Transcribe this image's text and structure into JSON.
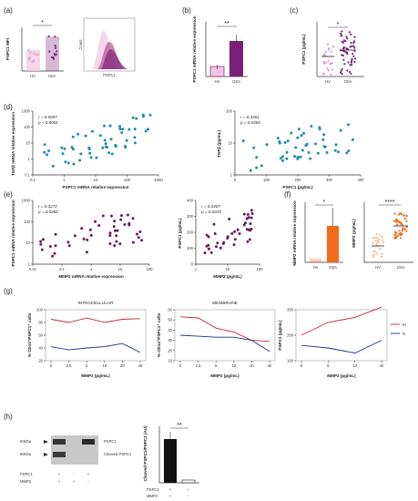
{
  "panels": {
    "a": {
      "label": "(a)",
      "ylabel": "PSPC1 MFI",
      "categories": [
        "HV",
        "OSA"
      ],
      "yticks": [
        "0",
        "10",
        "20",
        "30",
        "40"
      ],
      "sig": "*",
      "hist_ylabel": "Count",
      "hist_xlabel": "PSPC1"
    },
    "b": {
      "label": "(b)",
      "ylabel": "PSPC1 mRNA relative expression",
      "categories": [
        "HV",
        "OSA"
      ],
      "yticks": [
        "0",
        "20",
        "40",
        "60",
        "80"
      ],
      "sig": "**"
    },
    "c": {
      "label": "(c)",
      "ylabel": "PSPC1 (pg/mL)",
      "categories": [
        "HV",
        "OSA"
      ],
      "yticks": [
        "0",
        "100",
        "200",
        "300",
        "400",
        "500"
      ],
      "sig": "*"
    },
    "d": {
      "label": "(d)",
      "left": {
        "stat_r": "r = 0.5997",
        "stat_p": "p < 0.0001",
        "xlabel": "PSPC1 mRNA relative expression",
        "ylabel": "TGFβ mRNA relative expression",
        "xticks": [
          "0.1",
          "1",
          "10",
          "100",
          "1000"
        ],
        "yticks": [
          "0.1",
          "1",
          "10",
          "100",
          "1000"
        ]
      },
      "right": {
        "stat_r": "r = 0.3361",
        "stat_p": "p = 0.0365",
        "xlabel": "PSPC1 (pg/mL)",
        "ylabel": "TGFβ (pg/mL)",
        "xticks": [
          "0",
          "100",
          "200",
          "300",
          "400"
        ],
        "yticks": [
          "1",
          "10",
          "100"
        ]
      }
    },
    "e": {
      "label": "(e)",
      "left": {
        "stat_r": "r = 0.3272",
        "stat_p": "p = 0.0282",
        "xlabel": "MMP2 mRNA relative expression",
        "ylabel": "PSPC1 mRNA relative expression",
        "xticks": [
          "0.01",
          "0.1",
          "1",
          "10",
          "100"
        ],
        "yticks": [
          "1",
          "10",
          "100",
          "1000"
        ]
      },
      "right": {
        "stat_r": "r = 0.3407",
        "stat_p": "p = 0.0315",
        "xlabel": "MMP2 (pg/mL)",
        "ylabel": "PSPC1 (pg/mL)",
        "xticks": [
          "1",
          "10",
          "100"
        ],
        "yticks": [
          "0",
          "100",
          "200",
          "300",
          "400"
        ]
      }
    },
    "f": {
      "label": "(f)",
      "left": {
        "ylabel": "MMP2 mRNA relative expression",
        "categories": [
          "HV",
          "OSA"
        ],
        "yticks": [
          "0",
          "1",
          "2",
          "3",
          "4"
        ],
        "sig": "*"
      },
      "right": {
        "ylabel": "MMP2 (pg/mL)",
        "categories": [
          "HV",
          "OSA"
        ],
        "yticks": [
          "1",
          "10",
          "100",
          "1000"
        ],
        "sig": "****"
      }
    },
    "g": {
      "label": "(g)",
      "xlabel": "MMP2 (pg/mL)",
      "left": {
        "title": "INTRACELLULAR",
        "ylabel": "% CD14⁺PSPC1⁺ cells",
        "yticks": [
          "20",
          "40",
          "60",
          "80",
          "100"
        ]
      },
      "mid": {
        "title": "MEMBRANE",
        "ylabel": "% CD14⁺PSPC1⁺ cells",
        "yticks": [
          "10",
          "20",
          "30",
          "40",
          "50",
          "60"
        ]
      },
      "right": {
        "ylabel": "PSPC1 (pg/mL)",
        "yticks": [
          "100",
          "200",
          "300"
        ]
      },
      "legend": [
        "IH",
        "N"
      ]
    },
    "h": {
      "label": "(h)",
      "mw_top": "60kDa",
      "mw_bot": "50kDa",
      "band_top": "PSPC1",
      "band_bot": "Cleaved PSPC1",
      "row1": "PSPC1",
      "row2": "MMP2",
      "row1_vals": [
        "+",
        "-",
        "+"
      ],
      "row2_vals": [
        "+",
        "+",
        "-"
      ],
      "bar_ylabel": "Cleaved PSPC1/PSPC1 (AU)",
      "bar_yticks": [
        "0",
        "5",
        "10",
        "15"
      ],
      "bar_row1_vals": [
        "+",
        "+"
      ],
      "bar_row2_vals": [
        "+",
        "-"
      ],
      "sig": "**"
    }
  },
  "colors": {
    "hv_light": "#f2c4e6",
    "osa_purple": "#7a1f78",
    "scatter_teal": "#1f8ca6",
    "scatter_purple": "#6a1a5e",
    "orange": "#f26a1b",
    "line_red": "#c8243c",
    "line_navy": "#1f2f8c",
    "black": "#111111"
  },
  "chart_data": [
    {
      "panel": "a",
      "type": "bar",
      "categories": [
        "HV",
        "OSA"
      ],
      "values": [
        16,
        27
      ],
      "ylim": [
        0,
        40
      ]
    },
    {
      "panel": "b",
      "type": "bar",
      "categories": [
        "HV",
        "OSA"
      ],
      "values": [
        15,
        52
      ],
      "ylim": [
        0,
        80
      ]
    },
    {
      "panel": "c",
      "type": "scatter",
      "categories": [
        "HV",
        "OSA"
      ],
      "values": [
        180,
        240
      ],
      "ylim": [
        0,
        500
      ]
    },
    {
      "panel": "f-left",
      "type": "bar",
      "categories": [
        "HV",
        "OSA"
      ],
      "values": [
        0.2,
        2.4
      ],
      "ylim": [
        0,
        4
      ]
    },
    {
      "panel": "f-right",
      "type": "scatter",
      "categories": [
        "HV",
        "OSA"
      ],
      "values": [
        2,
        30
      ],
      "ylim": [
        1,
        1000
      ]
    },
    {
      "panel": "g-left",
      "type": "line",
      "title": "INTRACELLULAR",
      "x": [
        "0",
        "2.5",
        "5",
        "10",
        "20",
        "40"
      ],
      "series": [
        {
          "values": [
            85,
            80,
            87,
            80,
            85,
            86
          ]
        },
        {
          "values": [
            42,
            37,
            40,
            42,
            47,
            33
          ]
        }
      ],
      "ylim": [
        20,
        100
      ]
    },
    {
      "panel": "g-mid",
      "type": "line",
      "title": "MEMBRANE",
      "x": [
        "0",
        "2.5",
        "5",
        "10",
        "20",
        "40"
      ],
      "series": [
        {
          "values": [
            53,
            52,
            42,
            38,
            30,
            29
          ]
        },
        {
          "values": [
            35,
            34,
            33,
            33,
            30,
            19
          ]
        }
      ],
      "ylim": [
        10,
        60
      ]
    },
    {
      "panel": "g-right",
      "type": "line",
      "x": [
        "0",
        "5",
        "10",
        "40"
      ],
      "series": [
        {
          "name": "IH",
          "values": [
            200,
            250,
            270,
            310
          ]
        },
        {
          "name": "N",
          "values": [
            160,
            150,
            130,
            180
          ]
        }
      ],
      "ylim": [
        100,
        300
      ]
    },
    {
      "panel": "h",
      "type": "bar",
      "categories": [
        "+/+",
        "+/-"
      ],
      "values": [
        11.5,
        0.6
      ],
      "ylim": [
        0,
        15
      ]
    }
  ]
}
